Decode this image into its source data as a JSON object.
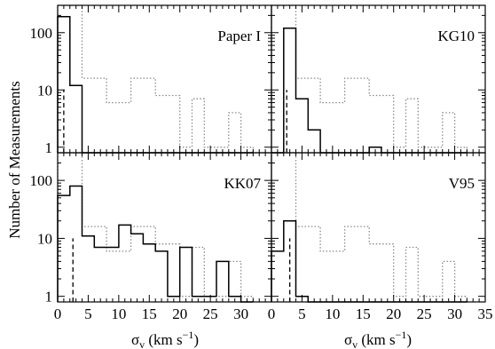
{
  "chart_data": {
    "type": "histogram",
    "ylabel": "Number of Measurements",
    "xlabel_base": "σ",
    "xlabel_sub": "v",
    "xlabel_units": " (km s",
    "xlabel_exp": "−1",
    "xlabel_close": ")",
    "yscale": "log",
    "xlim": [
      0,
      35
    ],
    "ylim": [
      0.8,
      300
    ],
    "x_ticks": [
      "0",
      "5",
      "10",
      "15",
      "20",
      "25",
      "30",
      "35"
    ],
    "y_ticks": [
      "1",
      "10",
      "100"
    ],
    "bin_edges": [
      0,
      2,
      4,
      6,
      8,
      10,
      12,
      14,
      16,
      18,
      20,
      22,
      24,
      26,
      28,
      30,
      32
    ],
    "reference_histogram": {
      "style": "dotted",
      "counts": [
        300,
        300,
        16,
        16,
        6,
        6,
        16,
        16,
        8,
        8,
        1,
        7,
        1,
        1,
        4,
        1
      ]
    },
    "panels": [
      {
        "label": "Paper I",
        "counts": [
          190,
          12,
          0,
          0,
          0,
          0,
          0,
          0,
          0,
          0,
          0,
          0,
          0,
          0,
          0,
          0
        ],
        "dashed_x": 1.0
      },
      {
        "label": "KG10",
        "counts": [
          0,
          120,
          7,
          2,
          0,
          0,
          0,
          0,
          1,
          0,
          0,
          0,
          0,
          0,
          0,
          0
        ],
        "dashed_x": 2.5
      },
      {
        "label": "KK07",
        "counts": [
          55,
          80,
          11,
          7,
          7,
          17,
          12,
          8,
          6,
          1,
          7,
          1,
          1,
          4,
          1,
          0
        ],
        "dashed_x": 2.5
      },
      {
        "label": "V95",
        "counts": [
          6,
          20,
          1,
          0,
          0,
          0,
          0,
          0,
          0,
          0,
          0,
          0,
          0,
          0,
          0,
          0
        ],
        "dashed_x": 3.0
      }
    ]
  }
}
